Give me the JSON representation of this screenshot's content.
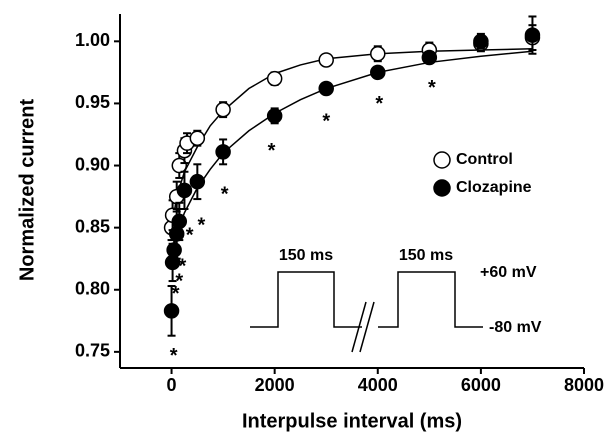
{
  "chart_data": {
    "type": "scatter",
    "x_label": "Interpulse interval (ms)",
    "y_label": "Normalized current",
    "xlim": [
      -1000,
      8000
    ],
    "ylim": [
      0.737,
      1.022
    ],
    "xticks": [
      0,
      2000,
      4000,
      6000,
      8000
    ],
    "yticks": [
      0.75,
      {
        "value": 0.8,
        "label": "0.80"
      },
      0.85,
      {
        "value": 0.9,
        "label": "0.90"
      },
      0.95,
      {
        "value": 1.0,
        "label": "1.00"
      }
    ],
    "series": [
      {
        "name": "Control",
        "color": "#000000",
        "marker_fill": "#ffffff",
        "x": [
          0,
          20,
          100,
          150,
          250,
          300,
          500,
          1000,
          2000,
          3000,
          4000,
          5000,
          6000,
          7000
        ],
        "values": [
          0.85,
          0.86,
          0.875,
          0.9,
          0.912,
          0.918,
          0.922,
          0.945,
          0.97,
          0.985,
          0.99,
          0.993,
          0.998,
          1.003
        ],
        "errors": [
          0.01,
          0.012,
          0.012,
          0.01,
          0.01,
          0.008,
          0.006,
          0.006,
          0.005,
          0.004,
          0.006,
          0.006,
          0.006,
          0.01
        ]
      },
      {
        "name": "Clozapine",
        "color": "#000000",
        "marker_fill": "#000000",
        "x": [
          0,
          20,
          50,
          100,
          150,
          250,
          500,
          1000,
          2000,
          3000,
          4000,
          5000,
          6000,
          7000
        ],
        "values": [
          0.783,
          0.822,
          0.832,
          0.845,
          0.855,
          0.88,
          0.887,
          0.911,
          0.94,
          0.962,
          0.975,
          0.987,
          1.0,
          1.005
        ],
        "errors": [
          0.02,
          0.015,
          0.012,
          0.02,
          0.015,
          0.015,
          0.014,
          0.01,
          0.006,
          0.004,
          0.004,
          0.004,
          0.006,
          0.015
        ]
      }
    ],
    "fits": [
      {
        "color": "#000000",
        "x": [
          0,
          100,
          250,
          500,
          750,
          1000,
          1500,
          2000,
          2500,
          3000,
          4000,
          5000,
          6000,
          7000
        ],
        "values": [
          0.848,
          0.875,
          0.895,
          0.915,
          0.932,
          0.944,
          0.962,
          0.974,
          0.981,
          0.986,
          0.99,
          0.992,
          0.993,
          0.994
        ]
      },
      {
        "color": "#000000",
        "x": [
          0,
          100,
          250,
          500,
          750,
          1000,
          1500,
          2000,
          2500,
          3000,
          4000,
          5000,
          6000,
          7000
        ],
        "values": [
          0.825,
          0.845,
          0.862,
          0.882,
          0.897,
          0.91,
          0.928,
          0.942,
          0.953,
          0.962,
          0.975,
          0.983,
          0.988,
          0.992
        ]
      }
    ],
    "annotations": [
      {
        "text": "*",
        "x": 40,
        "y": 0.75
      },
      {
        "text": "*",
        "x": 80,
        "y": 0.8
      },
      {
        "text": "*",
        "x": 150,
        "y": 0.81
      },
      {
        "text": "*",
        "x": 210,
        "y": 0.822
      },
      {
        "text": "*",
        "x": 350,
        "y": 0.847
      },
      {
        "text": "*",
        "x": 580,
        "y": 0.855
      },
      {
        "text": "*",
        "x": 1030,
        "y": 0.88
      },
      {
        "text": "*",
        "x": 1940,
        "y": 0.915
      },
      {
        "text": "*",
        "x": 3000,
        "y": 0.939
      },
      {
        "text": "*",
        "x": 4030,
        "y": 0.953
      },
      {
        "text": "*",
        "x": 5050,
        "y": 0.966
      }
    ],
    "inset_labels": [
      "150 ms",
      "150 ms",
      "+60 mV",
      "-80 mV"
    ]
  }
}
